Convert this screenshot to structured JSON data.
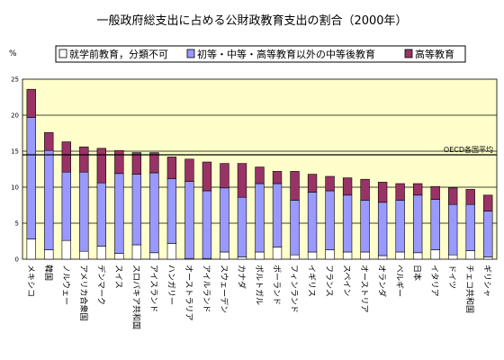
{
  "chart_data": {
    "type": "bar",
    "stacked": true,
    "title": "一般政府総支出に占める公財政教育支出の割合（2000年）",
    "ylabel": "%",
    "ylim": [
      0,
      25
    ],
    "yticks": [
      0,
      5,
      10,
      15,
      20,
      25
    ],
    "grid": true,
    "plot_background": "#FFFFCC",
    "legend_position": "top",
    "reference_line": {
      "value": 14.5,
      "label": "OECD各国平均"
    },
    "categories": [
      "メキシコ",
      "韓国",
      "ノルウェー",
      "アメリカ合衆国",
      "デンマーク",
      "スイス",
      "スロバキア共和国",
      "アイスランド",
      "ハンガリー",
      "オーストラリア",
      "アイルランド",
      "スウェーデン",
      "カナダ",
      "ポルトガル",
      "ポーランド",
      "フィンランド",
      "イギリス",
      "フランス",
      "スペイン",
      "オーストリア",
      "オランダ",
      "ベルギー",
      "日本",
      "イタリア",
      "ドイツ",
      "チェコ共和国",
      "ギリシャ"
    ],
    "series": [
      {
        "name": "就学前教育，分類不可",
        "color": "#FFFFFF",
        "values": [
          2.8,
          1.3,
          2.6,
          1.1,
          1.8,
          0.8,
          2.0,
          0.9,
          2.2,
          0.1,
          0.1,
          1.0,
          0.3,
          1.0,
          1.7,
          0.6,
          1.0,
          1.3,
          1.0,
          1.0,
          0.5,
          1.0,
          0.9,
          1.3,
          0.6,
          1.2,
          0.3
        ]
      },
      {
        "name": "初等・中等・高等教育以外の中等後教育",
        "color": "#9999FF",
        "values": [
          16.9,
          13.8,
          9.5,
          11.0,
          8.8,
          11.1,
          9.8,
          11.1,
          9.0,
          10.7,
          9.4,
          8.9,
          8.3,
          9.5,
          8.8,
          7.6,
          8.3,
          8.2,
          7.9,
          7.2,
          7.4,
          7.2,
          8.0,
          7.0,
          7.0,
          6.4,
          6.4
        ]
      },
      {
        "name": "高等教育",
        "color": "#993366",
        "values": [
          3.9,
          2.5,
          4.2,
          3.5,
          4.8,
          3.2,
          3.0,
          2.8,
          3.0,
          3.1,
          4.0,
          3.4,
          4.7,
          2.3,
          1.7,
          4.0,
          2.5,
          2.0,
          2.4,
          2.9,
          2.8,
          2.3,
          1.6,
          1.8,
          2.3,
          2.1,
          2.2
        ]
      }
    ]
  }
}
